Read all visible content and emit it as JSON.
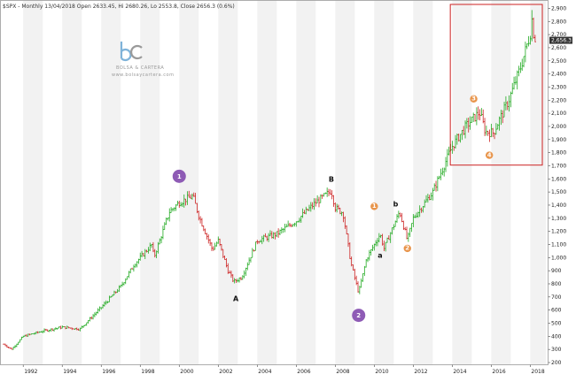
{
  "header": {
    "symbol": "$SPX",
    "sep": " - ",
    "period": "Monthly",
    "info": " 13/04/2018 Open 2633.45, Hi 2680.26, Lo 2553.8, Close 2656.3 (0.6%)"
  },
  "logo": {
    "line1": "BOLSA & CARTERA",
    "line2": "www.bolsaycartera.com",
    "brand_color": "#7fb3d9"
  },
  "colors": {
    "up_bar": "#22aa22",
    "down_bar": "#cc2222",
    "highlight_box": "#cc2222",
    "badge_purple": "#8e5bb5",
    "badge_orange": "#e8944a",
    "band": "#f2f2f2",
    "last_price_bg": "#333333"
  },
  "chart_data": {
    "type": "ohlc",
    "title": "$SPX - Monthly",
    "xlabel": "",
    "ylabel": "",
    "xlim": [
      1990.9,
      2018.8
    ],
    "ylim": [
      200,
      2950
    ],
    "x_ticks": [
      "1992",
      "1994",
      "1996",
      "1998",
      "2000",
      "2002",
      "2004",
      "2006",
      "2008",
      "2010",
      "2012",
      "2014",
      "2016",
      "2018"
    ],
    "y_ticks": [
      "200",
      "300",
      "400",
      "500",
      "600",
      "700",
      "800",
      "900",
      "1,000",
      "1,100",
      "1,200",
      "1,300",
      "1,400",
      "1,500",
      "1,600",
      "1,700",
      "1,800",
      "1,900",
      "2,000",
      "2,100",
      "2,200",
      "2,300",
      "2,400",
      "2,500",
      "2,600",
      "2,700",
      "2,800",
      "2,900"
    ],
    "last_price": "2,656.3",
    "anchors": [
      [
        1991.0,
        340
      ],
      [
        1991.4,
        300
      ],
      [
        1992.0,
        400
      ],
      [
        1993.0,
        440
      ],
      [
        1994.0,
        470
      ],
      [
        1994.9,
        455
      ],
      [
        1996.0,
        620
      ],
      [
        1997.0,
        780
      ],
      [
        1997.7,
        950
      ],
      [
        1998.6,
        1100
      ],
      [
        1998.7,
        1000
      ],
      [
        1999.5,
        1350
      ],
      [
        2000.0,
        1420
      ],
      [
        2000.7,
        1470
      ],
      [
        2001.0,
        1320
      ],
      [
        2001.7,
        1060
      ],
      [
        2002.0,
        1130
      ],
      [
        2002.5,
        900
      ],
      [
        2002.8,
        815
      ],
      [
        2003.2,
        850
      ],
      [
        2004.0,
        1130
      ],
      [
        2005.0,
        1180
      ],
      [
        2006.0,
        1280
      ],
      [
        2007.0,
        1420
      ],
      [
        2007.8,
        1510
      ],
      [
        2008.0,
        1380
      ],
      [
        2008.4,
        1340
      ],
      [
        2008.8,
        960
      ],
      [
        2009.2,
        730
      ],
      [
        2009.6,
        990
      ],
      [
        2010.3,
        1180
      ],
      [
        2010.5,
        1070
      ],
      [
        2011.3,
        1350
      ],
      [
        2011.7,
        1130
      ],
      [
        2012.0,
        1300
      ],
      [
        2013.0,
        1500
      ],
      [
        2014.0,
        1850
      ],
      [
        2014.7,
        2000
      ],
      [
        2015.4,
        2110
      ],
      [
        2015.7,
        1960
      ],
      [
        2016.1,
        1950
      ],
      [
        2016.9,
        2200
      ],
      [
        2017.5,
        2450
      ],
      [
        2017.99,
        2700
      ],
      [
        2018.08,
        2820
      ],
      [
        2018.17,
        2710
      ],
      [
        2018.29,
        2656
      ]
    ],
    "pivots": [
      {
        "x": 2000.0,
        "y": 1620,
        "label": "1",
        "kind": "purple"
      },
      {
        "x": 2002.9,
        "y": 690,
        "label": "A",
        "kind": "letter"
      },
      {
        "x": 2007.8,
        "y": 1600,
        "label": "B",
        "kind": "letter"
      },
      {
        "x": 2009.2,
        "y": 560,
        "label": "2",
        "kind": "purple"
      },
      {
        "x": 2010.0,
        "y": 1390,
        "label": "1",
        "kind": "orange"
      },
      {
        "x": 2010.3,
        "y": 1020,
        "label": "a",
        "kind": "letter"
      },
      {
        "x": 2011.1,
        "y": 1410,
        "label": "b",
        "kind": "letter"
      },
      {
        "x": 2011.7,
        "y": 1070,
        "label": "2",
        "kind": "orange"
      },
      {
        "x": 2015.1,
        "y": 2210,
        "label": "3",
        "kind": "orange"
      },
      {
        "x": 2015.9,
        "y": 1780,
        "label": "4",
        "kind": "orange"
      }
    ],
    "highlight_box": {
      "x0": 2013.9,
      "x1": 2018.8,
      "y0": 1705,
      "y1": 2950
    },
    "grid": false,
    "legend": "none"
  }
}
